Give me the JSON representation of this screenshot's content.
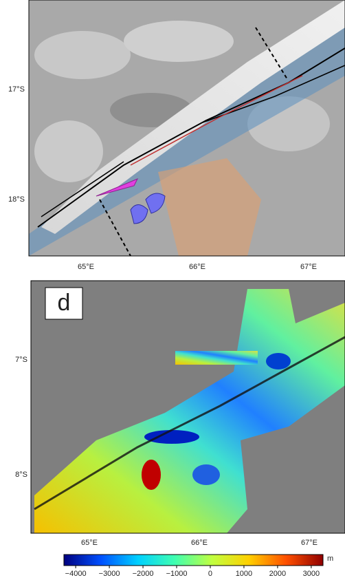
{
  "top_map": {
    "lat_labels": [
      "17°S",
      "18°S"
    ],
    "lon_labels": [
      "65°E",
      "66°E",
      "67°E"
    ]
  },
  "bottom_map": {
    "panel_label": "d",
    "lat_labels": [
      "7°S",
      "8°S"
    ],
    "lon_labels": [
      "65°E",
      "66°E",
      "67°E"
    ]
  },
  "colorbar": {
    "unit": "m",
    "lim": [
      -4350,
      3350
    ],
    "colors": [
      "#00007f",
      "#0050ff",
      "#00d0ff",
      "#40ffb0",
      "#c0ff40",
      "#ffd000",
      "#ff5000",
      "#900000"
    ],
    "ticks": [
      {
        "value": -4000,
        "label": "−4000"
      },
      {
        "value": -3000,
        "label": "−3000"
      },
      {
        "value": -2000,
        "label": "−2000"
      },
      {
        "value": -1000,
        "label": "−1000"
      },
      0,
      1000,
      2000,
      3000
    ]
  }
}
